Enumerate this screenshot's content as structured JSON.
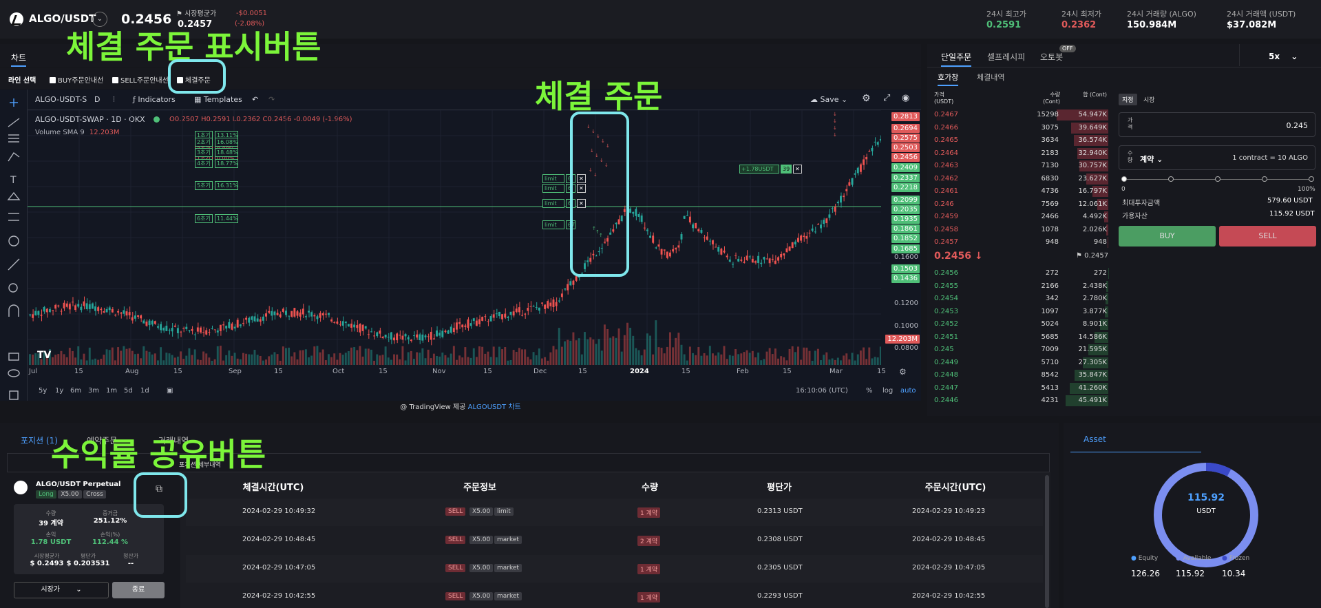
{
  "header": {
    "pair": "ALGO/USDT",
    "price": "0.2456",
    "mark_label": "시장평균가",
    "mark_value": "0.2457",
    "change_abs": "-$0.0051",
    "change_pct": "(-2.08%)",
    "stats": [
      {
        "label": "24시 최고가",
        "value": "0.2591",
        "color": "green"
      },
      {
        "label": "24시 최저가",
        "value": "0.2362",
        "color": "red"
      },
      {
        "label": "24시 거래량 (ALGO)",
        "value": "150.984M",
        "color": "white"
      },
      {
        "label": "24시 거래액 (USDT)",
        "value": "$37.082M",
        "color": "white"
      }
    ]
  },
  "chart_tab": "차트",
  "line_select": {
    "label": "라인 선택",
    "options": [
      "BUY주문안내선",
      "SELL주문안내선",
      "체결주문"
    ]
  },
  "tv": {
    "symbol": "ALGO-USDT-S",
    "interval": "D",
    "indicators": "Indicators",
    "templates": "Templates",
    "save": "Save",
    "legend_title": "ALGO-USDT-SWAP · 1D · OKX",
    "ohlc": "O0.2507 H0.2591 L0.2362 C0.2456 -0.0049 (-1.96%)",
    "volume": "Volume SMA 9",
    "volume_val": "12.203M",
    "y_labels": [
      "0.1600",
      "0.1200",
      "0.1000",
      "0.0800"
    ],
    "y_tags_red": [
      "0.2813",
      "0.2694",
      "0.2575",
      "0.2503",
      "0.2456"
    ],
    "y_tags_green": [
      "0.2409",
      "0.2337",
      "0.2218",
      "0.2099",
      "0.2035",
      "0.1935",
      "0.1861",
      "0.1852",
      "0.1685",
      "0.1503",
      "0.1436"
    ],
    "vol_tag": "12.203M",
    "x_labels": [
      "Jul",
      "15",
      "Aug",
      "15",
      "Sep",
      "15",
      "Oct",
      "15",
      "Nov",
      "15",
      "Dec",
      "15",
      "2024",
      "15",
      "Feb",
      "15",
      "Mar",
      "15"
    ],
    "ranges": [
      "5y",
      "1y",
      "6m",
      "3m",
      "1m",
      "5d",
      "1d"
    ],
    "time": "16:10:06 (UTC)",
    "pct": "%",
    "log": "log",
    "auto": "auto",
    "sell_levels": [
      [
        "3초기",
        "7.84%"
      ],
      [
        "2초기",
        "0.00%"
      ],
      [
        "1초기",
        "0.00%"
      ]
    ],
    "buy_levels": [
      [
        "1초기",
        "13.11%"
      ],
      [
        "2초기",
        "16.08%"
      ],
      [
        "3초기",
        "18.48%"
      ],
      [
        "4초기",
        "18.77%"
      ],
      [
        "5초기",
        "16.31%"
      ],
      [
        "6초기",
        "11.44%"
      ]
    ],
    "position_tag": "+1.78USDT",
    "position_qty": "39",
    "limit_label": "limit",
    "limit_qty": [
      "6",
      "6",
      "6",
      "67"
    ]
  },
  "credit": "@ TradingView 제공",
  "credit_link": "ALGOUSDT 차트",
  "orderbook": {
    "tabs": [
      "단일주문",
      "셀프레시피",
      "오토봇"
    ],
    "off": "OFF",
    "leverage": "5x",
    "subtabs": [
      "호가창",
      "체결내역"
    ],
    "headers": [
      "가격 (USDT)",
      "수량 (Cont)",
      "합 (Cont)"
    ],
    "asks": [
      [
        "0.2467",
        "15298",
        "54.947K"
      ],
      [
        "0.2466",
        "3075",
        "39.649K"
      ],
      [
        "0.2465",
        "3634",
        "36.574K"
      ],
      [
        "0.2464",
        "2183",
        "32.940K"
      ],
      [
        "0.2463",
        "7130",
        "30.757K"
      ],
      [
        "0.2462",
        "6830",
        "23.627K"
      ],
      [
        "0.2461",
        "4736",
        "16.797K"
      ],
      [
        "0.246",
        "7569",
        "12.061K"
      ],
      [
        "0.2459",
        "2466",
        "4.492K"
      ],
      [
        "0.2458",
        "1078",
        "2.026K"
      ],
      [
        "0.2457",
        "948",
        "948"
      ]
    ],
    "mid": "0.2456 ↓",
    "mid_mark": "0.2457",
    "bids": [
      [
        "0.2456",
        "272",
        "272"
      ],
      [
        "0.2455",
        "2166",
        "2.438K"
      ],
      [
        "0.2454",
        "342",
        "2.780K"
      ],
      [
        "0.2453",
        "1097",
        "3.877K"
      ],
      [
        "0.2452",
        "5024",
        "8.901K"
      ],
      [
        "0.2451",
        "5685",
        "14.586K"
      ],
      [
        "0.245",
        "7009",
        "21.595K"
      ],
      [
        "0.2449",
        "5710",
        "27.305K"
      ],
      [
        "0.2448",
        "8542",
        "35.847K"
      ],
      [
        "0.2447",
        "5413",
        "41.260K"
      ],
      [
        "0.2446",
        "4231",
        "45.491K"
      ]
    ]
  },
  "form": {
    "type_limit": "지정",
    "type_market": "시장",
    "price_label": "가격",
    "price_value": "0.245",
    "qty_label": "수량",
    "qty_unit": "계약",
    "contract_note": "1 contract = 10 ALGO",
    "slider_min": "0",
    "slider_max": "100%",
    "max_label": "최대투자금액",
    "max_value": "579.60 USDT",
    "avail_label": "가용자산",
    "avail_value": "115.92 USDT",
    "buy": "BUY",
    "sell": "SELL"
  },
  "bottom": {
    "tabs": [
      "포지션 (1)",
      "예약주문",
      "거래내역"
    ],
    "sub": "포지션 세부내역",
    "card": {
      "name": "ALGO/USDT Perpetual",
      "tags": [
        "Long",
        "X5.00",
        "Cross"
      ],
      "qty_label": "수량",
      "qty": "39 계약",
      "roe_label": "증거금",
      "roe": "251.12%",
      "pnl_label": "손익",
      "pnl": "1.78 USDT",
      "pnlpct_label": "손익(%)",
      "pnlpct": "112.44 %",
      "mark_label": "시장평균가",
      "mark": "$ 0.2493",
      "avg_label": "평단가",
      "avg": "$ 0.203531",
      "liq_label": "청산가",
      "liq": "--",
      "select": "시장가",
      "close": "종료"
    },
    "headers": [
      "체결시간(UTC)",
      "주문정보",
      "수량",
      "평단가",
      "주문시간(UTC)"
    ],
    "rows": [
      [
        "2024-02-29 10:49:32",
        "SELL",
        "X5.00",
        "limit",
        "1 계약",
        "0.2313 USDT",
        "2024-02-29 10:49:23"
      ],
      [
        "2024-02-29 10:48:45",
        "SELL",
        "X5.00",
        "market",
        "2 계약",
        "0.2308 USDT",
        "2024-02-29 10:48:45"
      ],
      [
        "2024-02-29 10:47:05",
        "SELL",
        "X5.00",
        "market",
        "1 계약",
        "0.2305 USDT",
        "2024-02-29 10:47:05"
      ],
      [
        "2024-02-29 10:42:55",
        "SELL",
        "X5.00",
        "market",
        "1 계약",
        "0.2293 USDT",
        "2024-02-29 10:42:55"
      ]
    ]
  },
  "asset": {
    "title": "Asset",
    "total": "115.92",
    "unit": "USDT",
    "equity_label": "Equity",
    "equity": "126.26",
    "available_label": "Available",
    "available": "115.92",
    "frozen_label": "Frozen",
    "frozen": "10.34"
  },
  "annotations": {
    "a1": "체결 주문 표시버튼",
    "a2": "체결 주문",
    "a3": "수익률 공유버튼"
  },
  "colors": {
    "up": "#4fbf78",
    "down": "#e05a5a",
    "accent": "#4ea0ff",
    "annotation": "#7cf53a",
    "highlight": "#7fe7ec"
  }
}
